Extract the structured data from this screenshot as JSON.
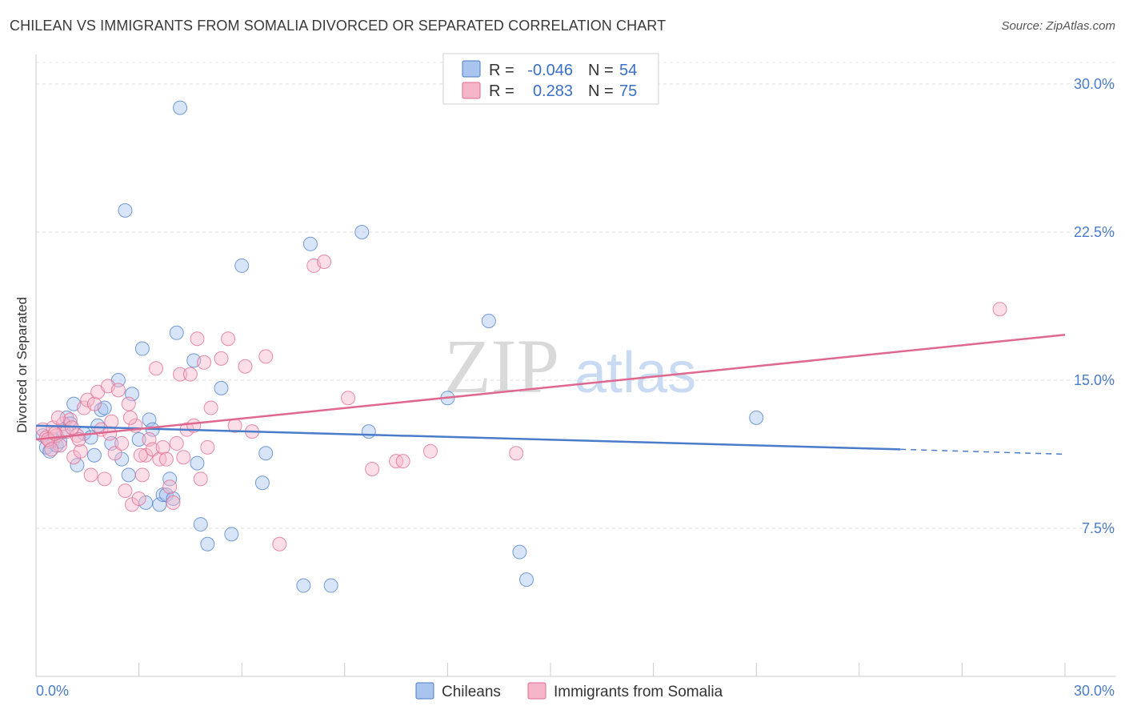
{
  "title": "CHILEAN VS IMMIGRANTS FROM SOMALIA DIVORCED OR SEPARATED CORRELATION CHART",
  "source": "Source: ZipAtlas.com",
  "watermark": {
    "zip": "ZIP",
    "atlas": "atlas"
  },
  "chart_data": {
    "type": "scatter",
    "ylabel": "Divorced or Separated",
    "xlim": [
      0,
      30
    ],
    "ylim": [
      0,
      31.5
    ],
    "y_ticks": [
      {
        "value": 7.5,
        "label": "7.5%"
      },
      {
        "value": 15.0,
        "label": "15.0%"
      },
      {
        "value": 22.5,
        "label": "22.5%"
      },
      {
        "value": 30.0,
        "label": "30.0%"
      }
    ],
    "x_tick_labels": {
      "left": "0.0%",
      "right": "30.0%"
    },
    "legend": [
      {
        "r_label": "R =",
        "r": "-0.046",
        "n_label": "N =",
        "n": "54"
      },
      {
        "r_label": "R =",
        "r": "0.283",
        "n_label": "N =",
        "n": "75"
      }
    ],
    "series": [
      {
        "name": "Chileans",
        "color": "#4a7cc9",
        "fill": "#a9c4ee",
        "trend": {
          "x0": 0,
          "y0": 12.7,
          "x1": 25.2,
          "y1": 11.5,
          "dash_x1": 30,
          "dash_y1": 11.25
        },
        "points": [
          [
            0.3,
            11.6
          ],
          [
            0.4,
            11.4
          ],
          [
            0.5,
            12.0
          ],
          [
            0.6,
            11.7
          ],
          [
            0.7,
            11.9
          ],
          [
            0.8,
            12.4
          ],
          [
            0.9,
            13.1
          ],
          [
            1.0,
            12.8
          ],
          [
            1.1,
            13.8
          ],
          [
            1.2,
            10.7
          ],
          [
            1.4,
            12.3
          ],
          [
            1.6,
            12.1
          ],
          [
            1.7,
            11.2
          ],
          [
            1.8,
            12.7
          ],
          [
            1.9,
            13.5
          ],
          [
            2.0,
            13.6
          ],
          [
            2.2,
            11.8
          ],
          [
            2.4,
            15.0
          ],
          [
            2.5,
            11.0
          ],
          [
            2.6,
            23.6
          ],
          [
            2.7,
            10.2
          ],
          [
            2.8,
            14.3
          ],
          [
            3.0,
            12.0
          ],
          [
            3.1,
            16.6
          ],
          [
            3.2,
            8.8
          ],
          [
            3.3,
            13.0
          ],
          [
            3.4,
            12.5
          ],
          [
            3.6,
            8.7
          ],
          [
            3.7,
            9.2
          ],
          [
            3.8,
            9.2
          ],
          [
            3.9,
            10.0
          ],
          [
            4.0,
            9.0
          ],
          [
            4.1,
            17.4
          ],
          [
            4.2,
            28.8
          ],
          [
            4.6,
            16.0
          ],
          [
            4.7,
            10.8
          ],
          [
            4.8,
            7.7
          ],
          [
            5.0,
            6.7
          ],
          [
            5.4,
            14.6
          ],
          [
            5.7,
            7.2
          ],
          [
            6.0,
            20.8
          ],
          [
            6.6,
            9.8
          ],
          [
            6.7,
            11.3
          ],
          [
            7.8,
            4.6
          ],
          [
            8.0,
            21.9
          ],
          [
            8.6,
            4.6
          ],
          [
            9.5,
            22.5
          ],
          [
            9.7,
            12.4
          ],
          [
            12.0,
            14.1
          ],
          [
            13.2,
            18.0
          ],
          [
            14.1,
            6.3
          ],
          [
            14.3,
            4.9
          ],
          [
            21.0,
            13.1
          ],
          [
            0.2,
            12.2
          ]
        ]
      },
      {
        "name": "Immigrants from Somalia",
        "color": "#e0688f",
        "fill": "#f6b6ca",
        "trend": {
          "x0": 0,
          "y0": 12.0,
          "x1": 30,
          "y1": 17.3
        },
        "points": [
          [
            0.2,
            12.5
          ],
          [
            0.3,
            12.1
          ],
          [
            0.4,
            11.9
          ],
          [
            0.5,
            12.6
          ],
          [
            0.6,
            12.2
          ],
          [
            0.7,
            11.7
          ],
          [
            0.8,
            12.8
          ],
          [
            0.9,
            12.4
          ],
          [
            1.0,
            13.0
          ],
          [
            1.1,
            11.1
          ],
          [
            1.2,
            12.2
          ],
          [
            1.3,
            11.4
          ],
          [
            1.4,
            13.6
          ],
          [
            1.5,
            14.0
          ],
          [
            1.6,
            10.2
          ],
          [
            1.7,
            13.8
          ],
          [
            1.8,
            14.4
          ],
          [
            1.9,
            12.5
          ],
          [
            2.0,
            10.0
          ],
          [
            2.1,
            14.7
          ],
          [
            2.2,
            12.9
          ],
          [
            2.3,
            11.3
          ],
          [
            2.4,
            14.5
          ],
          [
            2.5,
            11.8
          ],
          [
            2.6,
            9.4
          ],
          [
            2.7,
            13.8
          ],
          [
            2.8,
            8.7
          ],
          [
            2.9,
            12.7
          ],
          [
            3.0,
            9.0
          ],
          [
            3.1,
            10.2
          ],
          [
            3.2,
            11.2
          ],
          [
            3.3,
            12.0
          ],
          [
            3.4,
            11.5
          ],
          [
            3.5,
            15.6
          ],
          [
            3.6,
            11.0
          ],
          [
            3.7,
            11.6
          ],
          [
            3.8,
            11.0
          ],
          [
            3.9,
            9.6
          ],
          [
            4.0,
            8.8
          ],
          [
            4.1,
            11.8
          ],
          [
            4.2,
            15.3
          ],
          [
            4.3,
            11.1
          ],
          [
            4.4,
            12.5
          ],
          [
            4.5,
            15.3
          ],
          [
            4.6,
            12.7
          ],
          [
            4.7,
            17.1
          ],
          [
            4.8,
            10.0
          ],
          [
            4.9,
            15.9
          ],
          [
            5.0,
            11.6
          ],
          [
            5.1,
            13.6
          ],
          [
            5.4,
            16.1
          ],
          [
            5.6,
            17.1
          ],
          [
            5.8,
            12.7
          ],
          [
            6.1,
            15.7
          ],
          [
            6.3,
            12.4
          ],
          [
            6.7,
            16.2
          ],
          [
            7.1,
            6.7
          ],
          [
            8.1,
            20.8
          ],
          [
            8.4,
            21.0
          ],
          [
            9.1,
            14.1
          ],
          [
            9.8,
            10.5
          ],
          [
            10.5,
            10.9
          ],
          [
            10.7,
            10.9
          ],
          [
            11.5,
            11.4
          ],
          [
            14.0,
            11.3
          ],
          [
            28.1,
            18.6
          ],
          [
            0.35,
            12.0
          ],
          [
            0.45,
            11.5
          ],
          [
            0.55,
            12.3
          ],
          [
            0.65,
            13.1
          ],
          [
            1.05,
            12.6
          ],
          [
            1.25,
            12.0
          ],
          [
            2.15,
            12.3
          ],
          [
            2.75,
            13.1
          ],
          [
            3.05,
            11.2
          ]
        ]
      }
    ]
  }
}
